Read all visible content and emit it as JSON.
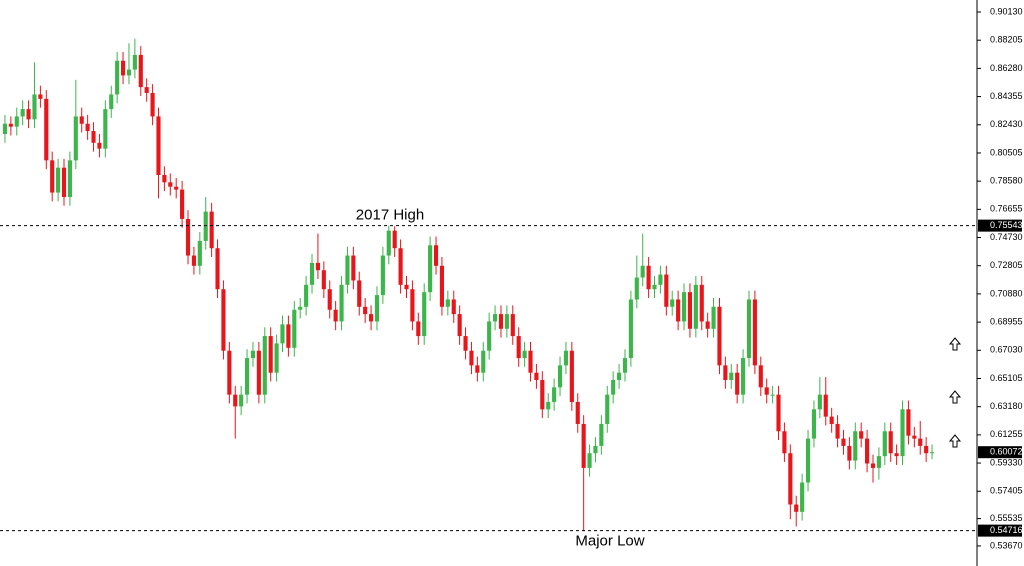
{
  "chart_data": {
    "type": "candlestick",
    "open": [
      0.818,
      0.825,
      0.823,
      0.83,
      0.835,
      0.828,
      0.845,
      0.842,
      0.8,
      0.778,
      0.795,
      0.775,
      0.8,
      0.83,
      0.825,
      0.82,
      0.812,
      0.808,
      0.835,
      0.845,
      0.868,
      0.858,
      0.862,
      0.872,
      0.85,
      0.846,
      0.83,
      0.79,
      0.785,
      0.782,
      0.78,
      0.76,
      0.735,
      0.728,
      0.745,
      0.765,
      0.74,
      0.712,
      0.67,
      0.64,
      0.632,
      0.64,
      0.665,
      0.67,
      0.64,
      0.68,
      0.655,
      0.675,
      0.688,
      0.672,
      0.698,
      0.7,
      0.715,
      0.73,
      0.725,
      0.712,
      0.698,
      0.69,
      0.715,
      0.735,
      0.718,
      0.7,
      0.695,
      0.69,
      0.708,
      0.735,
      0.752,
      0.74,
      0.715,
      0.712,
      0.69,
      0.68,
      0.71,
      0.742,
      0.728,
      0.7,
      0.705,
      0.695,
      0.68,
      0.67,
      0.66,
      0.655,
      0.67,
      0.69,
      0.695,
      0.685,
      0.695,
      0.68,
      0.665,
      0.67,
      0.655,
      0.65,
      0.63,
      0.635,
      0.645,
      0.66,
      0.67,
      0.635,
      0.62,
      0.59,
      0.6,
      0.605,
      0.62,
      0.64,
      0.65,
      0.655,
      0.665,
      0.705,
      0.72,
      0.728,
      0.712,
      0.715,
      0.722,
      0.7,
      0.705,
      0.69,
      0.71,
      0.685,
      0.715,
      0.69,
      0.685,
      0.7,
      0.66,
      0.65,
      0.655,
      0.64,
      0.665,
      0.705,
      0.66,
      0.645,
      0.64,
      0.64,
      0.615,
      0.6,
      0.565,
      0.56,
      0.58,
      0.61,
      0.63,
      0.64,
      0.625,
      0.62,
      0.61,
      0.605,
      0.595,
      0.615,
      0.61,
      0.593,
      0.59,
      0.598,
      0.615,
      0.6,
      0.598,
      0.63,
      0.612,
      0.61,
      0.605,
      0.6
    ],
    "high": [
      0.831,
      0.83,
      0.836,
      0.841,
      0.841,
      0.867,
      0.851,
      0.848,
      0.806,
      0.801,
      0.801,
      0.806,
      0.855,
      0.836,
      0.831,
      0.826,
      0.818,
      0.841,
      0.851,
      0.874,
      0.874,
      0.88,
      0.883,
      0.878,
      0.856,
      0.852,
      0.836,
      0.796,
      0.791,
      0.788,
      0.786,
      0.766,
      0.741,
      0.751,
      0.775,
      0.771,
      0.746,
      0.718,
      0.676,
      0.646,
      0.646,
      0.671,
      0.676,
      0.676,
      0.686,
      0.686,
      0.681,
      0.694,
      0.694,
      0.704,
      0.706,
      0.721,
      0.736,
      0.75,
      0.731,
      0.718,
      0.704,
      0.721,
      0.741,
      0.741,
      0.724,
      0.706,
      0.701,
      0.714,
      0.741,
      0.7554,
      0.755,
      0.746,
      0.721,
      0.718,
      0.696,
      0.716,
      0.748,
      0.748,
      0.734,
      0.711,
      0.711,
      0.701,
      0.686,
      0.676,
      0.666,
      0.676,
      0.696,
      0.701,
      0.701,
      0.701,
      0.701,
      0.686,
      0.676,
      0.676,
      0.661,
      0.656,
      0.641,
      0.651,
      0.666,
      0.676,
      0.676,
      0.641,
      0.626,
      0.606,
      0.611,
      0.626,
      0.646,
      0.656,
      0.661,
      0.671,
      0.711,
      0.735,
      0.75,
      0.734,
      0.721,
      0.728,
      0.728,
      0.711,
      0.711,
      0.716,
      0.716,
      0.721,
      0.721,
      0.696,
      0.706,
      0.706,
      0.666,
      0.661,
      0.661,
      0.671,
      0.711,
      0.711,
      0.666,
      0.651,
      0.646,
      0.646,
      0.621,
      0.606,
      0.571,
      0.586,
      0.616,
      0.636,
      0.652,
      0.652,
      0.631,
      0.626,
      0.616,
      0.611,
      0.621,
      0.621,
      0.616,
      0.599,
      0.604,
      0.621,
      0.621,
      0.606,
      0.636,
      0.636,
      0.618,
      0.622,
      0.611,
      0.606
    ],
    "low": [
      0.812,
      0.817,
      0.817,
      0.824,
      0.822,
      0.822,
      0.836,
      0.794,
      0.772,
      0.772,
      0.769,
      0.769,
      0.794,
      0.819,
      0.814,
      0.806,
      0.802,
      0.802,
      0.829,
      0.839,
      0.852,
      0.852,
      0.856,
      0.844,
      0.84,
      0.824,
      0.774,
      0.779,
      0.776,
      0.774,
      0.754,
      0.729,
      0.722,
      0.722,
      0.739,
      0.734,
      0.706,
      0.664,
      0.634,
      0.61,
      0.626,
      0.634,
      0.659,
      0.634,
      0.634,
      0.649,
      0.649,
      0.669,
      0.666,
      0.666,
      0.692,
      0.694,
      0.709,
      0.719,
      0.706,
      0.692,
      0.684,
      0.684,
      0.709,
      0.712,
      0.694,
      0.689,
      0.684,
      0.684,
      0.702,
      0.729,
      0.734,
      0.709,
      0.706,
      0.684,
      0.674,
      0.674,
      0.704,
      0.722,
      0.694,
      0.694,
      0.689,
      0.674,
      0.664,
      0.654,
      0.649,
      0.649,
      0.664,
      0.684,
      0.679,
      0.679,
      0.674,
      0.659,
      0.659,
      0.649,
      0.644,
      0.624,
      0.624,
      0.629,
      0.639,
      0.654,
      0.629,
      0.614,
      0.54716,
      0.584,
      0.594,
      0.599,
      0.614,
      0.634,
      0.644,
      0.649,
      0.659,
      0.699,
      0.714,
      0.706,
      0.706,
      0.709,
      0.694,
      0.694,
      0.684,
      0.684,
      0.679,
      0.679,
      0.684,
      0.679,
      0.679,
      0.654,
      0.644,
      0.644,
      0.634,
      0.634,
      0.659,
      0.654,
      0.639,
      0.634,
      0.634,
      0.609,
      0.594,
      0.555,
      0.55,
      0.554,
      0.574,
      0.604,
      0.624,
      0.619,
      0.614,
      0.604,
      0.599,
      0.589,
      0.589,
      0.604,
      0.587,
      0.58,
      0.582,
      0.592,
      0.594,
      0.592,
      0.592,
      0.606,
      0.604,
      0.599,
      0.594,
      0.596
    ],
    "close": [
      0.825,
      0.823,
      0.83,
      0.835,
      0.828,
      0.845,
      0.842,
      0.8,
      0.778,
      0.795,
      0.775,
      0.8,
      0.83,
      0.825,
      0.82,
      0.812,
      0.808,
      0.835,
      0.845,
      0.868,
      0.858,
      0.862,
      0.872,
      0.85,
      0.846,
      0.83,
      0.79,
      0.785,
      0.782,
      0.78,
      0.76,
      0.735,
      0.728,
      0.745,
      0.765,
      0.74,
      0.712,
      0.67,
      0.64,
      0.632,
      0.64,
      0.665,
      0.67,
      0.64,
      0.68,
      0.655,
      0.675,
      0.688,
      0.672,
      0.698,
      0.7,
      0.715,
      0.73,
      0.725,
      0.712,
      0.698,
      0.69,
      0.715,
      0.735,
      0.718,
      0.7,
      0.695,
      0.69,
      0.708,
      0.735,
      0.752,
      0.74,
      0.715,
      0.712,
      0.69,
      0.68,
      0.71,
      0.742,
      0.728,
      0.7,
      0.705,
      0.695,
      0.68,
      0.67,
      0.66,
      0.655,
      0.67,
      0.69,
      0.695,
      0.685,
      0.695,
      0.68,
      0.665,
      0.67,
      0.655,
      0.65,
      0.63,
      0.635,
      0.645,
      0.66,
      0.67,
      0.635,
      0.62,
      0.59,
      0.6,
      0.605,
      0.62,
      0.64,
      0.65,
      0.655,
      0.665,
      0.705,
      0.72,
      0.728,
      0.712,
      0.715,
      0.722,
      0.7,
      0.705,
      0.69,
      0.71,
      0.685,
      0.715,
      0.69,
      0.685,
      0.7,
      0.66,
      0.65,
      0.655,
      0.64,
      0.665,
      0.705,
      0.66,
      0.645,
      0.64,
      0.64,
      0.615,
      0.6,
      0.565,
      0.56,
      0.58,
      0.61,
      0.63,
      0.64,
      0.625,
      0.62,
      0.61,
      0.605,
      0.595,
      0.615,
      0.61,
      0.593,
      0.59,
      0.598,
      0.615,
      0.6,
      0.598,
      0.63,
      0.612,
      0.61,
      0.605,
      0.6,
      0.60072
    ],
    "up_color": "#3cb54a",
    "down_color": "#e8151b",
    "ylim": [
      0.523,
      0.9095
    ],
    "yticks": [
      {
        "value": 0.9013,
        "label": "0.90130"
      },
      0.88205,
      {
        "value": 0.8628,
        "label": "0.86280"
      },
      0.84355,
      {
        "value": 0.8243,
        "label": "0.82430"
      },
      0.80505,
      {
        "value": 0.7858,
        "label": "0.78580"
      },
      0.76655,
      {
        "value": 0.7473,
        "label": "0.74730"
      },
      0.72805,
      {
        "value": 0.7088,
        "label": "0.70880"
      },
      0.68955,
      {
        "value": 0.6703,
        "label": "0.67030"
      },
      0.65105,
      {
        "value": 0.6318,
        "label": "0.63180"
      },
      0.61255,
      {
        "value": 0.5933,
        "label": "0.59330"
      },
      0.57405,
      0.55535,
      {
        "value": 0.5367,
        "label": "0.53670"
      }
    ],
    "levels": [
      {
        "label": "2017 High",
        "value": 0.75543
      },
      {
        "label": "Major Low",
        "value": 0.54716
      }
    ],
    "last_price": 0.60072
  }
}
